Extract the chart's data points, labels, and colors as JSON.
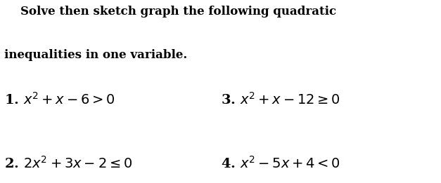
{
  "background_color": "#ffffff",
  "title_line1": "    Solve then sketch graph the following quadratic",
  "title_line2": "inequalities in one variable.",
  "item1": "1. $x^2 + x - 6 > 0$",
  "item2": "2. $2x^2 + 3x - 2 \\leq 0$",
  "item3": "3. $x^2 + x - 12 \\geq 0$",
  "item4": "4. $x^2 - 5x + 4 < 0$",
  "text_color": "#000000",
  "title_fontsize": 12.0,
  "item_fontsize": 14.0,
  "figwidth": 6.27,
  "figheight": 2.61,
  "dpi": 100
}
